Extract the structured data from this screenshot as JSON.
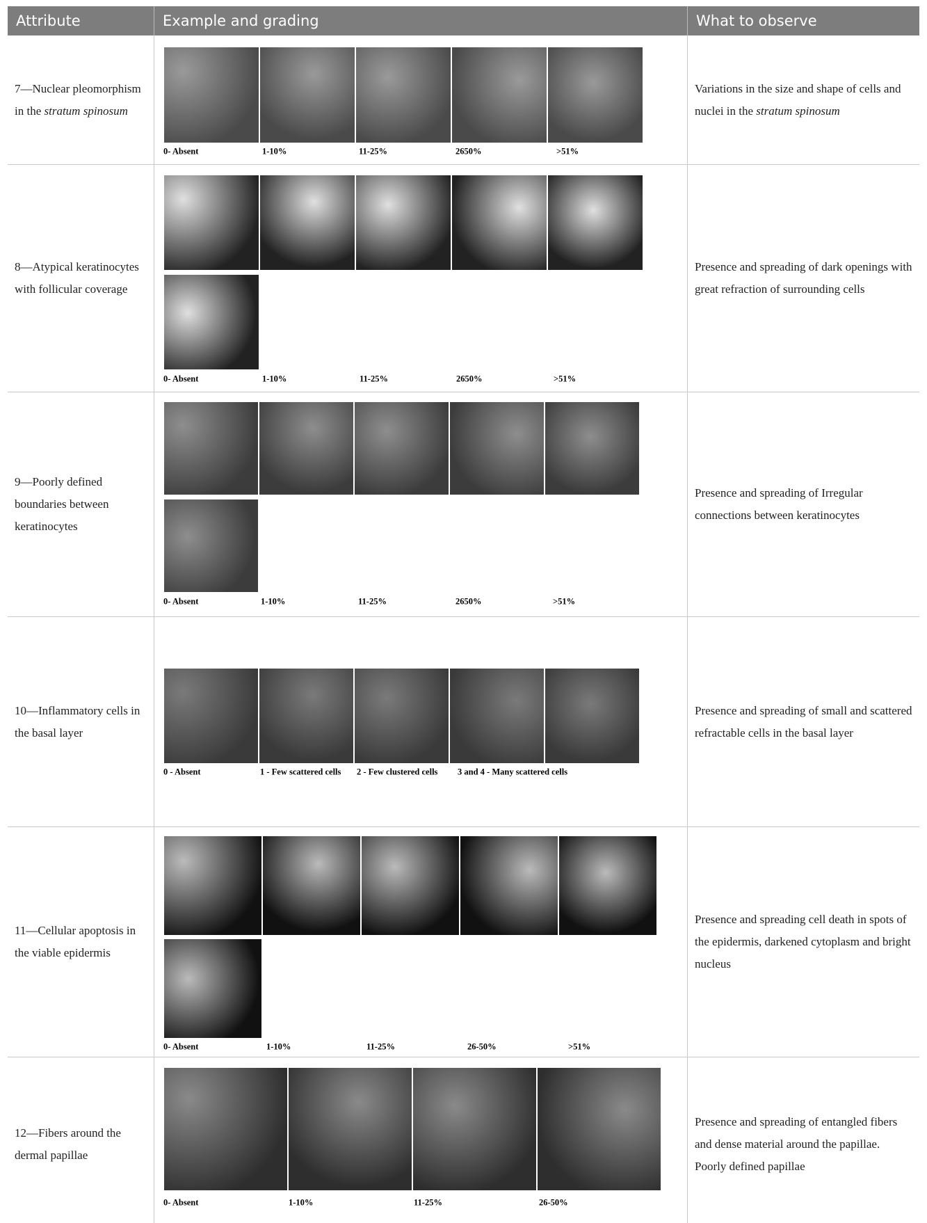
{
  "table": {
    "header": [
      "Attribute",
      "Example and grading",
      "What to observe"
    ],
    "rows": [
      {
        "attribute": [
          "7—Nuclear pleomorphism in the ",
          "stratum spinosum"
        ],
        "grades": [
          "0- Absent",
          "1-10%",
          "11-25%",
          "2650%",
          ">51%"
        ],
        "observe": [
          "Variations in the size and shape of cells and nuclei in the ",
          "stratum spinosum"
        ]
      },
      {
        "attribute": [
          "8—Atypical keratinocytes with follicular coverage"
        ],
        "grades": [
          "0- Absent",
          "1-10%",
          "11-25%",
          "2650%",
          ">51%"
        ],
        "observe": [
          "Presence and spreading of dark openings with great refraction of surrounding cells"
        ]
      },
      {
        "attribute": [
          "9—Poorly defined boundaries between keratinocytes"
        ],
        "grades": [
          "0- Absent",
          "1-10%",
          "11-25%",
          "2650%",
          ">51%"
        ],
        "observe": [
          "Presence and spreading of Irregular connections between keratinocytes"
        ]
      },
      {
        "attribute": [
          "10—Inflammatory cells in the basal layer"
        ],
        "grades": [
          "0 - Absent",
          "1 - Few scattered cells",
          "2 - Few clustered cells",
          "3 and 4 - Many scattered cells"
        ],
        "observe": [
          "Presence and spreading of small and scattered refractable cells in the basal layer"
        ]
      },
      {
        "attribute": [
          "11—Cellular apoptosis in the viable epidermis"
        ],
        "grades": [
          "0- Absent",
          "1-10%",
          "11-25%",
          "26-50%",
          ">51%"
        ],
        "observe": [
          "Presence and spreading cell death in spots of the epidermis, darkened cytoplasm and bright nucleus"
        ]
      },
      {
        "attribute": [
          "12—Fibers around the dermal papillae"
        ],
        "grades": [
          "0- Absent",
          "1-10%",
          "11-25%",
          "26-50%"
        ],
        "observe": [
          "Presence and spreading of entangled fibers and dense material around the papillae. Poorly defined papillae"
        ]
      }
    ]
  }
}
